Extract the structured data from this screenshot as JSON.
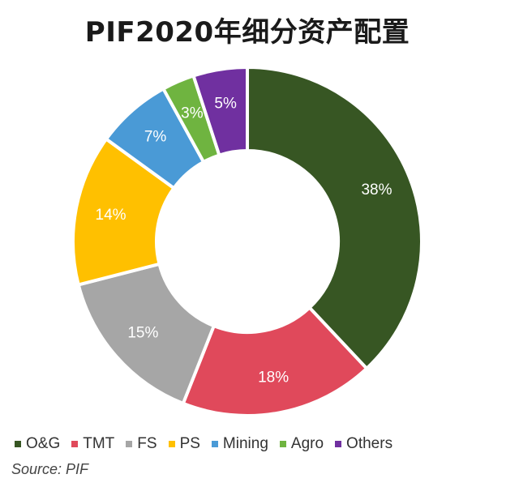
{
  "chart_data": {
    "type": "pie",
    "title": "PIF2020年细分资产配置",
    "categories": [
      "O&G",
      "TMT",
      "FS",
      "PS",
      "Mining",
      "Agro",
      "Others"
    ],
    "values": [
      38,
      18,
      15,
      14,
      7,
      3,
      5
    ],
    "labels": [
      "38%",
      "18%",
      "15%",
      "14%",
      "7%",
      "3%",
      "5%"
    ],
    "colors": [
      "#375623",
      "#e0495b",
      "#a6a6a6",
      "#ffc000",
      "#4a9ad6",
      "#6fb440",
      "#7030a0"
    ],
    "donut": true,
    "legend_position": "bottom",
    "source": "Source: PIF"
  }
}
